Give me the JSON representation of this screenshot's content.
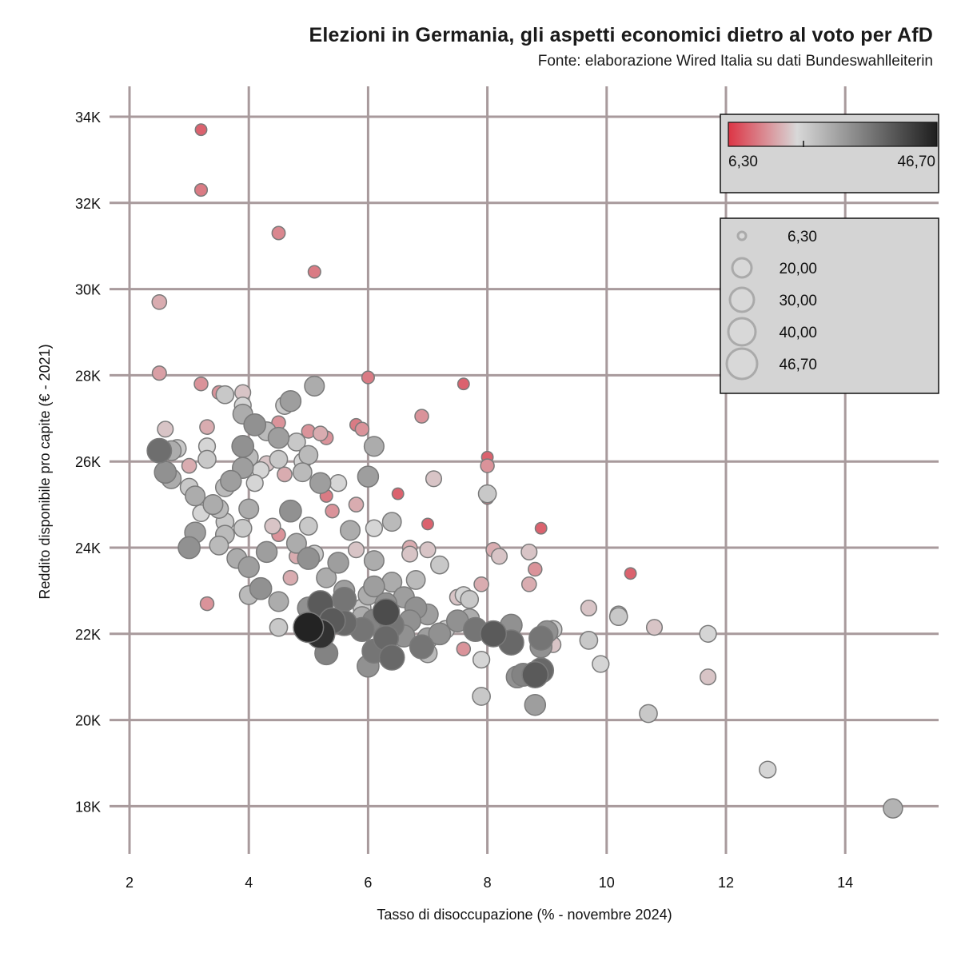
{
  "header": {
    "title": "Elezioni in Germania, gli aspetti economici dietro al voto per AfD",
    "subtitle": "Fonte: elaborazione Wired Italia su dati Bundeswahlleiterin"
  },
  "chart_data": {
    "type": "scatter",
    "xlabel": "Tasso di disoccupazione (% - novembre 2024)",
    "ylabel": "Reddito disponibile pro capite (€ - 2021)",
    "xlim": [
      1.7,
      15.6
    ],
    "ylim": [
      17000,
      34700
    ],
    "xticks": [
      2,
      4,
      6,
      8,
      10,
      12,
      14
    ],
    "xtick_labels": [
      "2",
      "4",
      "6",
      "8",
      "10",
      "12",
      "14"
    ],
    "yticks": [
      18000,
      20000,
      22000,
      24000,
      26000,
      28000,
      30000,
      32000,
      34000
    ],
    "ytick_labels": [
      "18K",
      "20K",
      "22K",
      "24K",
      "26K",
      "28K",
      "30K",
      "32K",
      "34K"
    ],
    "grid": true,
    "color_legend": {
      "min_label": "6,30",
      "max_label": "46,70",
      "min": 6.3,
      "max": 46.7,
      "colors": [
        "#dc3545",
        "#d8d8d8",
        "#1e1e1e"
      ]
    },
    "size_legend": {
      "labels": [
        "6,30",
        "20,00",
        "30,00",
        "40,00",
        "46,70"
      ],
      "values": [
        6.3,
        20,
        30,
        40,
        46.7
      ]
    },
    "points": [
      [
        3.2,
        33700,
        10
      ],
      [
        3.2,
        32300,
        12
      ],
      [
        4.5,
        31300,
        13
      ],
      [
        5.1,
        30400,
        12
      ],
      [
        2.5,
        29700,
        16
      ],
      [
        2.5,
        28050,
        15
      ],
      [
        3.2,
        27800,
        14
      ],
      [
        6.0,
        27950,
        12
      ],
      [
        7.6,
        27800,
        10
      ],
      [
        5.1,
        27750,
        26
      ],
      [
        3.5,
        27600,
        14
      ],
      [
        3.6,
        27550,
        22
      ],
      [
        3.9,
        27600,
        18
      ],
      [
        4.6,
        27300,
        22
      ],
      [
        4.7,
        27400,
        28
      ],
      [
        3.9,
        27300,
        20
      ],
      [
        3.9,
        27100,
        26
      ],
      [
        4.1,
        26850,
        30
      ],
      [
        4.5,
        26900,
        14
      ],
      [
        4.3,
        26700,
        24
      ],
      [
        5.8,
        26850,
        12
      ],
      [
        6.9,
        27050,
        14
      ],
      [
        2.6,
        26750,
        18
      ],
      [
        3.3,
        26800,
        16
      ],
      [
        5.0,
        26700,
        14
      ],
      [
        5.2,
        26650,
        16
      ],
      [
        5.9,
        26750,
        14
      ],
      [
        4.5,
        26550,
        28
      ],
      [
        4.8,
        26450,
        22
      ],
      [
        5.3,
        26550,
        14
      ],
      [
        6.1,
        26350,
        26
      ],
      [
        3.3,
        26350,
        20
      ],
      [
        2.8,
        26300,
        22
      ],
      [
        2.7,
        26250,
        26
      ],
      [
        2.5,
        26250,
        35
      ],
      [
        3.9,
        26350,
        30
      ],
      [
        3.0,
        25900,
        16
      ],
      [
        3.3,
        26050,
        22
      ],
      [
        4.0,
        26100,
        24
      ],
      [
        4.3,
        25950,
        18
      ],
      [
        4.5,
        26050,
        22
      ],
      [
        4.9,
        26000,
        20
      ],
      [
        5.0,
        26150,
        24
      ],
      [
        4.2,
        25800,
        20
      ],
      [
        4.6,
        25700,
        16
      ],
      [
        4.9,
        25750,
        24
      ],
      [
        5.5,
        25500,
        20
      ],
      [
        5.2,
        25500,
        28
      ],
      [
        3.9,
        25850,
        28
      ],
      [
        2.6,
        25750,
        30
      ],
      [
        2.7,
        25600,
        26
      ],
      [
        3.7,
        25550,
        28
      ],
      [
        3.6,
        25400,
        24
      ],
      [
        3.0,
        25400,
        22
      ],
      [
        3.1,
        25200,
        26
      ],
      [
        4.1,
        25500,
        20
      ],
      [
        6.0,
        25650,
        28
      ],
      [
        7.1,
        25600,
        18
      ],
      [
        8.0,
        26100,
        10
      ],
      [
        8.0,
        25900,
        14
      ],
      [
        3.4,
        25000,
        26
      ],
      [
        3.5,
        24900,
        24
      ],
      [
        3.2,
        24800,
        20
      ],
      [
        3.6,
        24600,
        22
      ],
      [
        4.0,
        24900,
        26
      ],
      [
        4.7,
        24850,
        30
      ],
      [
        5.4,
        24850,
        14
      ],
      [
        5.8,
        25000,
        16
      ],
      [
        5.3,
        25200,
        12
      ],
      [
        6.5,
        25250,
        10
      ],
      [
        8.0,
        25250,
        22
      ],
      [
        8.0,
        25150,
        12
      ],
      [
        6.4,
        24600,
        24
      ],
      [
        6.1,
        24450,
        20
      ],
      [
        5.7,
        24400,
        26
      ],
      [
        5.0,
        24500,
        22
      ],
      [
        4.5,
        24300,
        14
      ],
      [
        4.4,
        24500,
        18
      ],
      [
        3.9,
        24450,
        22
      ],
      [
        3.6,
        24300,
        24
      ],
      [
        3.1,
        24350,
        28
      ],
      [
        3.0,
        24000,
        30
      ],
      [
        3.5,
        24050,
        24
      ],
      [
        4.3,
        23900,
        28
      ],
      [
        4.8,
        24100,
        26
      ],
      [
        5.1,
        23850,
        22
      ],
      [
        4.8,
        23800,
        16
      ],
      [
        5.5,
        23650,
        28
      ],
      [
        5.8,
        23950,
        18
      ],
      [
        6.1,
        23700,
        26
      ],
      [
        7.0,
        24550,
        10
      ],
      [
        8.9,
        24450,
        10
      ],
      [
        6.7,
        24000,
        16
      ],
      [
        7.0,
        23950,
        18
      ],
      [
        6.7,
        23850,
        18
      ],
      [
        8.1,
        23950,
        16
      ],
      [
        8.2,
        23800,
        18
      ],
      [
        8.7,
        23900,
        18
      ],
      [
        7.2,
        23600,
        22
      ],
      [
        5.0,
        23750,
        30
      ],
      [
        4.0,
        23550,
        28
      ],
      [
        3.8,
        23750,
        26
      ],
      [
        4.7,
        23300,
        16
      ],
      [
        5.3,
        23300,
        26
      ],
      [
        5.6,
        23000,
        28
      ],
      [
        6.1,
        23100,
        28
      ],
      [
        6.4,
        23200,
        26
      ],
      [
        6.8,
        23250,
        24
      ],
      [
        7.7,
        22800,
        22
      ],
      [
        7.6,
        22900,
        20
      ],
      [
        7.5,
        22850,
        18
      ],
      [
        8.8,
        23500,
        14
      ],
      [
        8.7,
        23150,
        16
      ],
      [
        7.9,
        23150,
        16
      ],
      [
        10.4,
        23400,
        10
      ],
      [
        4.2,
        23050,
        30
      ],
      [
        3.3,
        22700,
        14
      ],
      [
        4.0,
        22900,
        24
      ],
      [
        4.5,
        22750,
        26
      ],
      [
        5.0,
        22600,
        30
      ],
      [
        5.2,
        22700,
        38
      ],
      [
        5.6,
        22800,
        34
      ],
      [
        6.0,
        22900,
        26
      ],
      [
        6.3,
        22700,
        30
      ],
      [
        6.6,
        22850,
        28
      ],
      [
        6.8,
        22600,
        30
      ],
      [
        6.3,
        22500,
        40
      ],
      [
        5.9,
        22600,
        22
      ],
      [
        5.9,
        22400,
        26
      ],
      [
        6.1,
        22300,
        32
      ],
      [
        6.4,
        22200,
        34
      ],
      [
        6.7,
        22300,
        30
      ],
      [
        7.0,
        22450,
        28
      ],
      [
        7.3,
        22100,
        22
      ],
      [
        7.5,
        22300,
        30
      ],
      [
        7.7,
        22350,
        26
      ],
      [
        7.8,
        22100,
        34
      ],
      [
        8.1,
        22000,
        38
      ],
      [
        8.4,
        22200,
        30
      ],
      [
        8.4,
        21800,
        36
      ],
      [
        8.9,
        21900,
        34
      ],
      [
        9.0,
        22050,
        30
      ],
      [
        9.1,
        22100,
        22
      ],
      [
        9.1,
        21750,
        18
      ],
      [
        9.7,
        22600,
        18
      ],
      [
        10.2,
        22450,
        20
      ],
      [
        10.2,
        22400,
        22
      ],
      [
        10.8,
        22150,
        18
      ],
      [
        11.7,
        22000,
        20
      ],
      [
        9.7,
        21850,
        22
      ],
      [
        8.9,
        21700,
        30
      ],
      [
        8.9,
        21150,
        36
      ],
      [
        8.8,
        21050,
        38
      ],
      [
        8.6,
        21050,
        32
      ],
      [
        8.5,
        21000,
        30
      ],
      [
        9.9,
        21300,
        20
      ],
      [
        11.7,
        21000,
        18
      ],
      [
        7.9,
        21400,
        20
      ],
      [
        7.9,
        20550,
        22
      ],
      [
        8.8,
        20350,
        28
      ],
      [
        10.7,
        20150,
        22
      ],
      [
        12.7,
        18850,
        20
      ],
      [
        14.8,
        17950,
        25
      ],
      [
        4.5,
        22150,
        22
      ],
      [
        5.0,
        22150,
        46
      ],
      [
        5.2,
        22000,
        44
      ],
      [
        5.4,
        22300,
        38
      ],
      [
        5.6,
        22250,
        36
      ],
      [
        5.9,
        22100,
        34
      ],
      [
        6.3,
        21900,
        36
      ],
      [
        6.6,
        21950,
        30
      ],
      [
        6.9,
        21700,
        34
      ],
      [
        7.0,
        21900,
        28
      ],
      [
        7.2,
        22000,
        30
      ],
      [
        7.6,
        21650,
        14
      ],
      [
        7.0,
        21550,
        24
      ],
      [
        6.1,
        21600,
        34
      ],
      [
        6.0,
        21250,
        30
      ],
      [
        6.4,
        21450,
        36
      ],
      [
        5.3,
        21550,
        32
      ]
    ]
  }
}
